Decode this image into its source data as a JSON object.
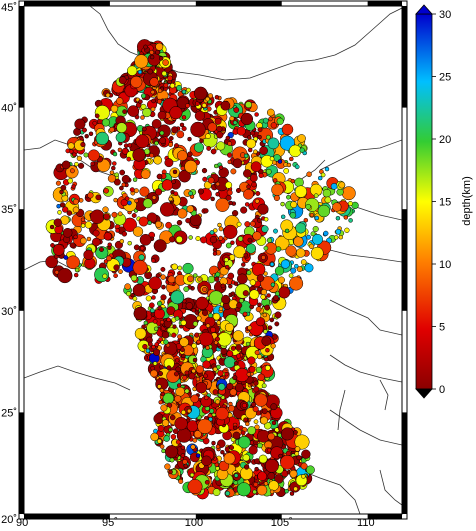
{
  "map": {
    "lon_range": [
      90,
      112
    ],
    "lat_range": [
      20,
      45
    ],
    "lon_ticks": [
      {
        "value": 90,
        "label": "90˚"
      },
      {
        "value": 95,
        "label": "95˚"
      },
      {
        "value": 100,
        "label": "100˚"
      },
      {
        "value": 105,
        "label": "105˚"
      },
      {
        "value": 110,
        "label": "110˚"
      }
    ],
    "lat_ticks": [
      {
        "value": 20,
        "label": "20˚"
      },
      {
        "value": 25,
        "label": "25˚"
      },
      {
        "value": 30,
        "label": "30˚"
      },
      {
        "value": 35,
        "label": "35˚"
      },
      {
        "value": 40,
        "label": "40˚"
      },
      {
        "value": 45,
        "label": "45˚"
      }
    ]
  },
  "colorbar": {
    "label": "depth(km)",
    "ticks": [
      {
        "value": 0,
        "label": "0"
      },
      {
        "value": 5,
        "label": "5"
      },
      {
        "value": 10,
        "label": "10"
      },
      {
        "value": 15,
        "label": "15"
      },
      {
        "value": 20,
        "label": "20"
      },
      {
        "value": 25,
        "label": "25"
      },
      {
        "value": 30,
        "label": "30"
      }
    ],
    "range": [
      0,
      30
    ],
    "colors": [
      "#8b0000",
      "#e00000",
      "#ff7f00",
      "#ffff00",
      "#33cc33",
      "#00bfff",
      "#0000cd"
    ]
  },
  "events": {
    "seed": 12345,
    "count": 2600,
    "depth_range_km": [
      0,
      30
    ]
  }
}
